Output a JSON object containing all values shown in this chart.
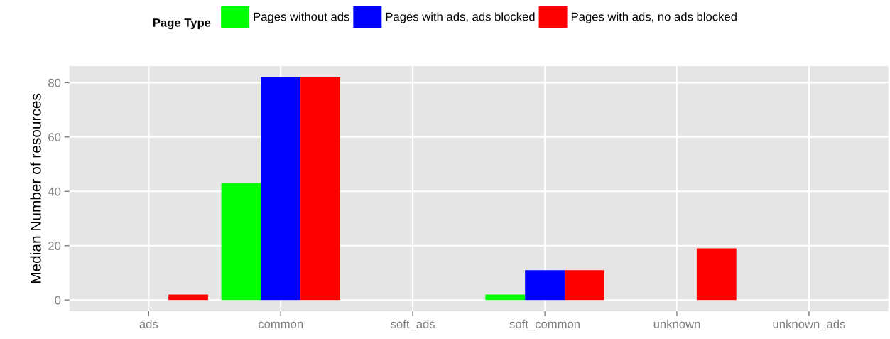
{
  "chart_data": {
    "type": "bar",
    "ylabel": "Median Number of resources",
    "legend_title": "Page Type",
    "categories": [
      "ads",
      "common",
      "soft_ads",
      "soft_common",
      "unknown",
      "unknown_ads"
    ],
    "series": [
      {
        "name": "Pages without ads",
        "color": "#00ff00",
        "values": [
          0,
          43,
          0,
          2,
          0,
          0
        ]
      },
      {
        "name": "Pages with ads, ads blocked",
        "color": "#0000ff",
        "values": [
          0,
          82,
          0,
          11,
          0,
          0
        ]
      },
      {
        "name": "Pages with ads, no ads blocked",
        "color": "#ff0000",
        "values": [
          2,
          82,
          0,
          11,
          19,
          0
        ]
      }
    ],
    "ylim": [
      -4.1,
      86.1
    ],
    "yticks": [
      0,
      20,
      40,
      60,
      80
    ],
    "grid": true,
    "legend": "top"
  }
}
